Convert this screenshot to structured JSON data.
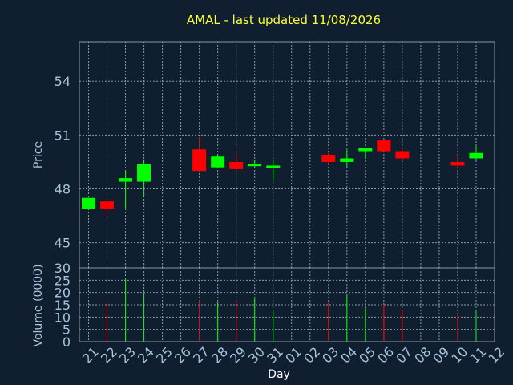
{
  "chart_data": {
    "type": "candlestick",
    "title": "AMAL - last updated 11/08/2026",
    "xlabel": "Day",
    "price_ylabel": "Price",
    "volume_ylabel": "Volume (0000)",
    "x_ticks": [
      "21",
      "22",
      "23",
      "24",
      "25",
      "26",
      "27",
      "28",
      "29",
      "30",
      "31",
      "01",
      "02",
      "03",
      "04",
      "05",
      "06",
      "07",
      "08",
      "09",
      "10",
      "11",
      "12"
    ],
    "price_ylim": [
      43.6,
      56.2
    ],
    "price_ticks": [
      45,
      48,
      51,
      54
    ],
    "volume_ylim": [
      0,
      30
    ],
    "volume_ticks": [
      0,
      5,
      10,
      15,
      20,
      25,
      30
    ],
    "up_color": "#00ff00",
    "down_color": "#ff0000",
    "candles": [
      {
        "day": "21",
        "open": 46.9,
        "close": 47.5,
        "high": 47.5,
        "low": 46.9,
        "volume": 0
      },
      {
        "day": "22",
        "open": 47.3,
        "close": 46.9,
        "high": 47.4,
        "low": 46.5,
        "volume": 16
      },
      {
        "day": "23",
        "open": 48.4,
        "close": 48.6,
        "high": 49.0,
        "low": 46.9,
        "volume": 26
      },
      {
        "day": "24",
        "open": 48.4,
        "close": 49.4,
        "high": 49.6,
        "low": 47.6,
        "volume": 20
      },
      {
        "day": "27",
        "open": 50.2,
        "close": 49.0,
        "high": 50.9,
        "low": 48.9,
        "volume": 17
      },
      {
        "day": "28",
        "open": 49.2,
        "close": 49.8,
        "high": 49.9,
        "low": 49.2,
        "volume": 16
      },
      {
        "day": "29",
        "open": 49.5,
        "close": 49.1,
        "high": 50.0,
        "low": 49.0,
        "volume": 17
      },
      {
        "day": "30",
        "open": 49.3,
        "close": 49.4,
        "high": 49.6,
        "low": 49.2,
        "volume": 18
      },
      {
        "day": "31",
        "open": 49.3,
        "close": 49.3,
        "high": 49.6,
        "low": 48.5,
        "volume": 13
      },
      {
        "day": "03",
        "open": 49.9,
        "close": 49.5,
        "high": 50.0,
        "low": 49.4,
        "volume": 16
      },
      {
        "day": "04",
        "open": 49.5,
        "close": 49.7,
        "high": 50.2,
        "low": 49.2,
        "volume": 19
      },
      {
        "day": "05",
        "open": 50.1,
        "close": 50.3,
        "high": 50.3,
        "low": 49.7,
        "volume": 14
      },
      {
        "day": "06",
        "open": 50.7,
        "close": 50.1,
        "high": 50.7,
        "low": 50.1,
        "volume": 15
      },
      {
        "day": "07",
        "open": 50.1,
        "close": 49.7,
        "high": 50.2,
        "low": 49.6,
        "volume": 13
      },
      {
        "day": "10",
        "open": 49.5,
        "close": 49.3,
        "high": 49.9,
        "low": 49.2,
        "volume": 11
      },
      {
        "day": "11",
        "open": 49.7,
        "close": 50.0,
        "high": 50.4,
        "low": 49.6,
        "volume": 13
      }
    ]
  }
}
